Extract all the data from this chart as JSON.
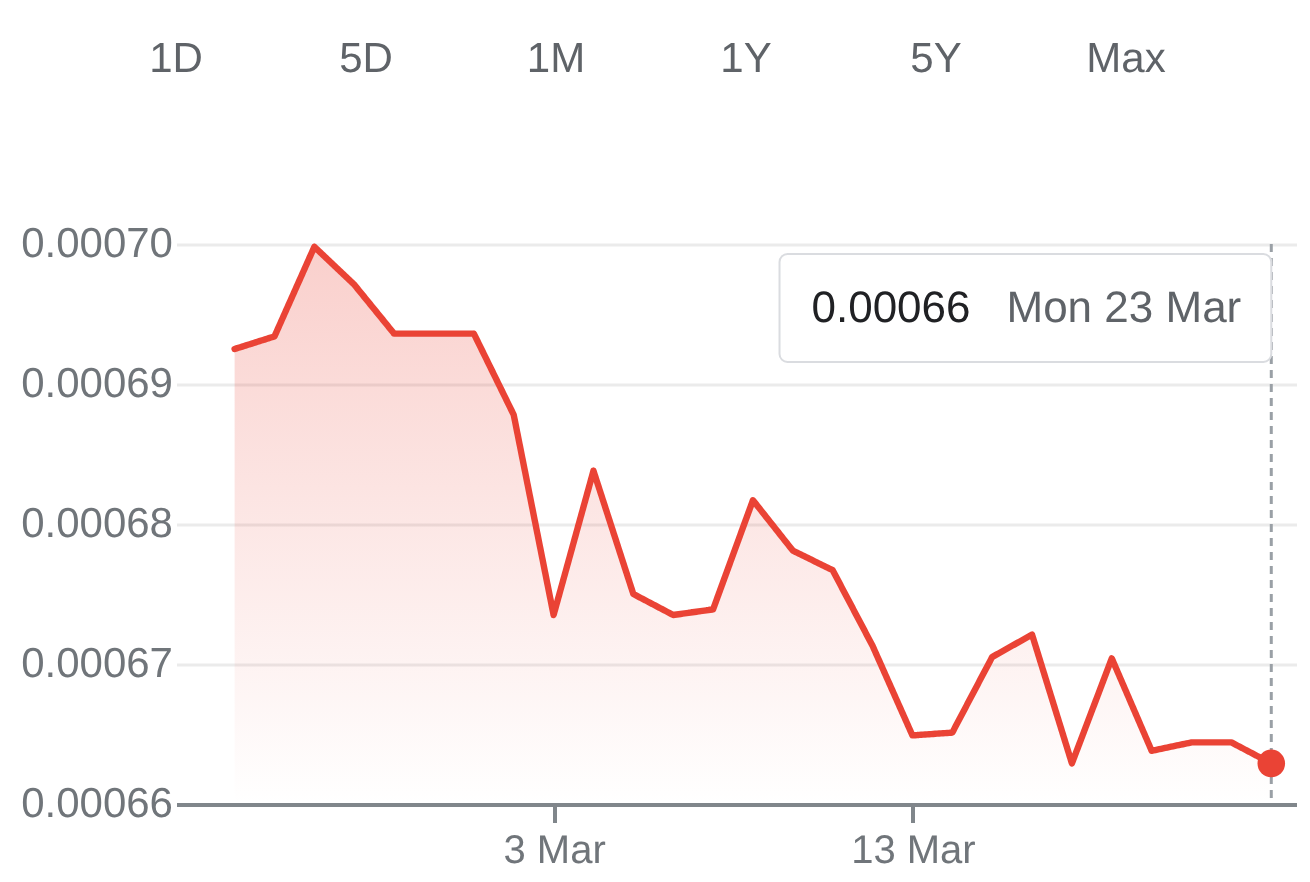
{
  "chart_data": {
    "type": "area",
    "annotations": [
      "1D",
      "5D",
      "1M",
      "1Y",
      "5Y",
      "Max",
      "0.00066",
      "Mon 23 Mar"
    ],
    "categories": [
      null,
      null,
      null,
      null,
      null,
      null,
      null,
      null,
      "3 Mar",
      null,
      null,
      null,
      null,
      null,
      null,
      null,
      null,
      "13 Mar",
      null,
      null,
      null,
      null,
      null,
      null,
      null,
      null,
      null
    ],
    "series": [
      {
        "color": "#ea4335",
        "values": [
          0.0006925,
          0.0006934,
          0.0006998,
          0.0006971,
          0.0006936,
          0.0006936,
          0.0006936,
          0.0006878,
          0.0006735,
          0.0006838,
          0.000675,
          0.0006735,
          0.0006739,
          0.0006817,
          0.0006781,
          0.0006767,
          0.0006713,
          0.0006649,
          0.0006651,
          0.0006705,
          0.0006721,
          0.0006629,
          0.0006704,
          0.0006638,
          0.0006644,
          0.0006644,
          0.0006629
        ]
      },
      {
        "type": "scatter",
        "color": "#ea4335",
        "marker": "circle",
        "values": [
          null,
          null,
          null,
          null,
          null,
          null,
          null,
          null,
          null,
          null,
          null,
          null,
          null,
          null,
          null,
          null,
          null,
          null,
          null,
          null,
          null,
          null,
          null,
          null,
          null,
          null,
          0.0006629
        ]
      }
    ],
    "ylim": [
      0.00066,
      0.0007
    ],
    "yticks": [
      {
        "value": 0.00066,
        "label": "0.00066"
      },
      {
        "value": 0.00067,
        "label": "0.00067"
      },
      {
        "value": 0.00068,
        "label": "0.00068"
      },
      {
        "value": 0.00069,
        "label": "0.00069"
      },
      {
        "value": 0.0007,
        "label": "0.00070"
      }
    ],
    "grid": "y"
  }
}
